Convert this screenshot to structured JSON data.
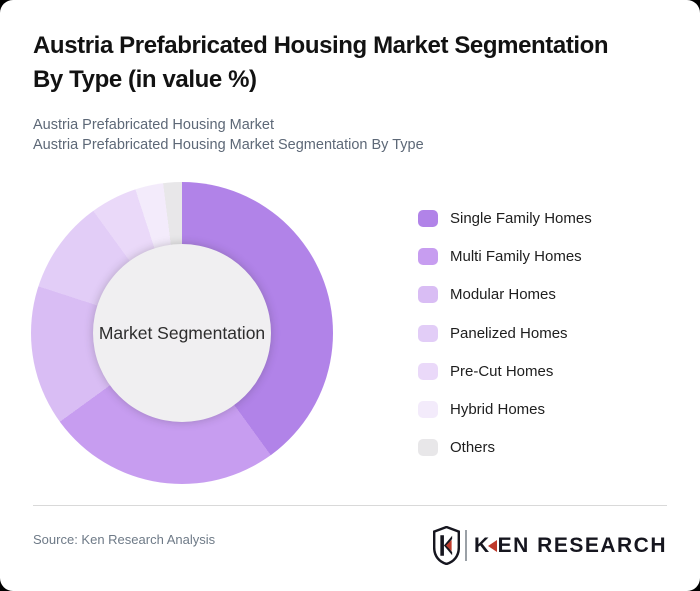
{
  "page": {
    "outer_background": "#000000",
    "card_background": "#ffffff"
  },
  "header": {
    "title_line1": "Austria Prefabricated Housing Market Segmentation",
    "title_line2": "By Type (in value %)",
    "subtitle_line1": "Austria Prefabricated Housing Market",
    "subtitle_line2": "Austria Prefabricated Housing Market Segmentation By Type"
  },
  "chart_data": {
    "type": "pie",
    "variant": "donut",
    "title": "Austria Prefabricated Housing Market Segmentation By Type (in value %)",
    "units": "value %",
    "center_label": "Market Segmentation",
    "hole_color": "#f0eff1",
    "legend_position": "right",
    "segments": [
      {
        "label": "Single Family Homes",
        "value": 40,
        "color": "#b183e8"
      },
      {
        "label": "Multi Family Homes",
        "value": 25,
        "color": "#c79df0"
      },
      {
        "label": "Modular Homes",
        "value": 15,
        "color": "#d9bdf4"
      },
      {
        "label": "Panelized Homes",
        "value": 10,
        "color": "#e2cdf7"
      },
      {
        "label": "Pre-Cut Homes",
        "value": 5,
        "color": "#ead9f9"
      },
      {
        "label": "Hybrid Homes",
        "value": 3,
        "color": "#f3ebfb"
      },
      {
        "label": "Others",
        "value": 2,
        "color": "#e8e7e9"
      }
    ]
  },
  "footer": {
    "source": "Source: Ken Research Analysis",
    "divider_color": "#d9d9d9",
    "logo": {
      "wordmark_k": "K",
      "wordmark_rest": "EN RESEARCH",
      "wordmark_color": "#16161f",
      "accent_color": "#bf3a2b",
      "separator_color": "#9aa0a6"
    }
  }
}
